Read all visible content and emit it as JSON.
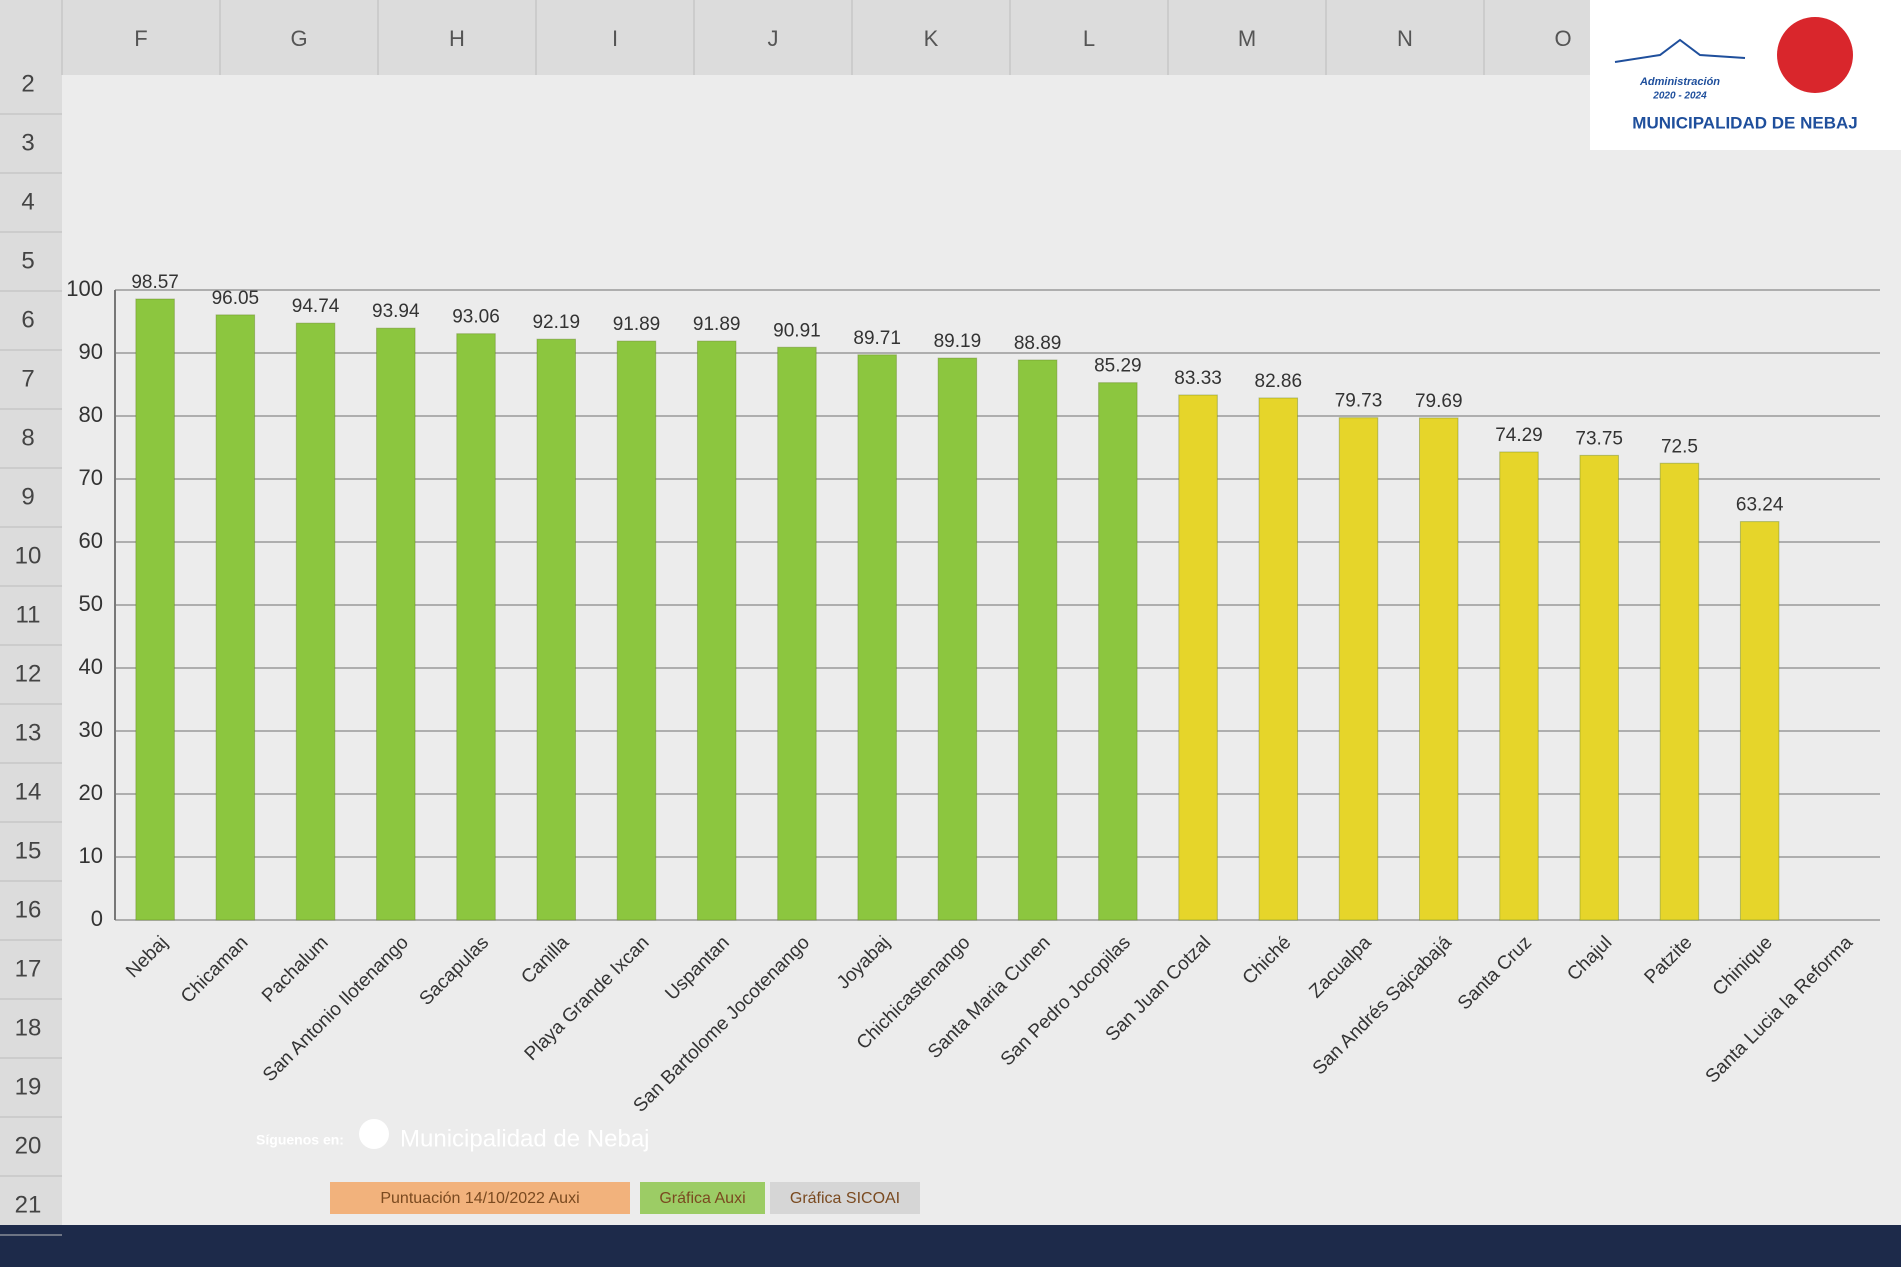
{
  "chart_data": {
    "type": "bar",
    "categories": [
      "Nebaj",
      "Chicaman",
      "Pachalum",
      "San Antonio Ilotenango",
      "Sacapulas",
      "Canilla",
      "Playa Grande Ixcan",
      "Uspantan",
      "San Bartolome Jocotenango",
      "Joyabaj",
      "Chichicastenango",
      "Santa Maria Cunen",
      "San Pedro Jocopilas",
      "San Juan Cotzal",
      "Chiché",
      "Zacualpa",
      "San Andrés Sajcabajá",
      "Santa Cruz",
      "Chajul",
      "Patzite",
      "Chinique",
      "Santa Lucia la Reforma"
    ],
    "values": [
      98.57,
      96.05,
      94.74,
      93.94,
      93.06,
      92.19,
      91.89,
      91.89,
      90.91,
      89.71,
      89.19,
      88.89,
      85.29,
      83.33,
      82.86,
      79.73,
      79.69,
      74.29,
      73.75,
      72.5,
      63.24,
      null
    ],
    "colors": [
      "#8cc63f",
      "#8cc63f",
      "#8cc63f",
      "#8cc63f",
      "#8cc63f",
      "#8cc63f",
      "#8cc63f",
      "#8cc63f",
      "#8cc63f",
      "#8cc63f",
      "#8cc63f",
      "#8cc63f",
      "#8cc63f",
      "#e6d52a",
      "#e6d52a",
      "#e6d52a",
      "#e6d52a",
      "#e6d52a",
      "#e6d52a",
      "#e6d52a",
      "#e6d52a",
      "#e6d52a"
    ],
    "ylim": [
      0,
      100
    ],
    "yticks": [
      0,
      10,
      20,
      30,
      40,
      50,
      60,
      70,
      80,
      90,
      100
    ],
    "grid": true
  },
  "spreadsheet": {
    "columns": [
      "F",
      "G",
      "H",
      "I",
      "J",
      "K",
      "L",
      "M",
      "N",
      "O"
    ],
    "rows": [
      2,
      3,
      4,
      5,
      6,
      7,
      8,
      9,
      10,
      11,
      12,
      13,
      14,
      15,
      16,
      17,
      18,
      19,
      20,
      21
    ],
    "tabs": [
      "Puntuación 14/10/2022 Auxi",
      "Gráfica Auxi",
      "Gráfica SICOAI"
    ]
  },
  "branding": {
    "administration": "Administración",
    "period": "2020 - 2024",
    "name": "MUNICIPALIDAD DE NEBAJ"
  },
  "footer": {
    "follow": "Síguenos en:",
    "page": "Municipalidad de Nebaj"
  }
}
